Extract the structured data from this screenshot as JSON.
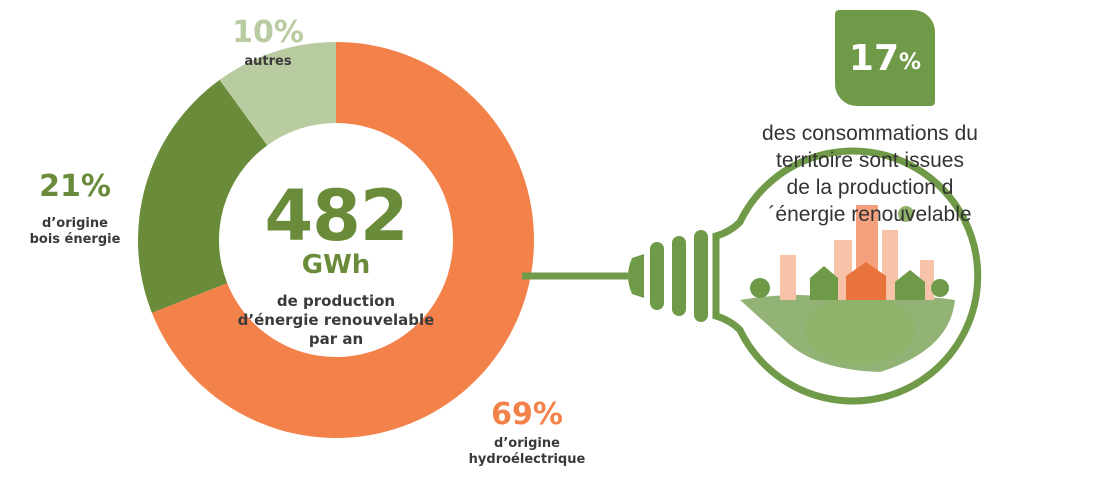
{
  "chart_data": {
    "type": "donut",
    "categories": [
      "d’origine\nhydroélectrique",
      "d’origine\nbois énergie",
      "autres"
    ],
    "values": [
      69,
      21,
      10
    ],
    "value_labels": [
      "69%",
      "21%",
      "10%"
    ],
    "colors": [
      "#f2824a",
      "#6a8c3a",
      "#b9cba0"
    ],
    "center": {
      "value": "482",
      "unit": "GWh",
      "text": "de production\nd’énergie renouvelable\npar an"
    },
    "highlight": {
      "value": "17",
      "unit": "%",
      "text": "des consommations du territoire sont issues\nde la production d´énergie renouvelable"
    }
  }
}
